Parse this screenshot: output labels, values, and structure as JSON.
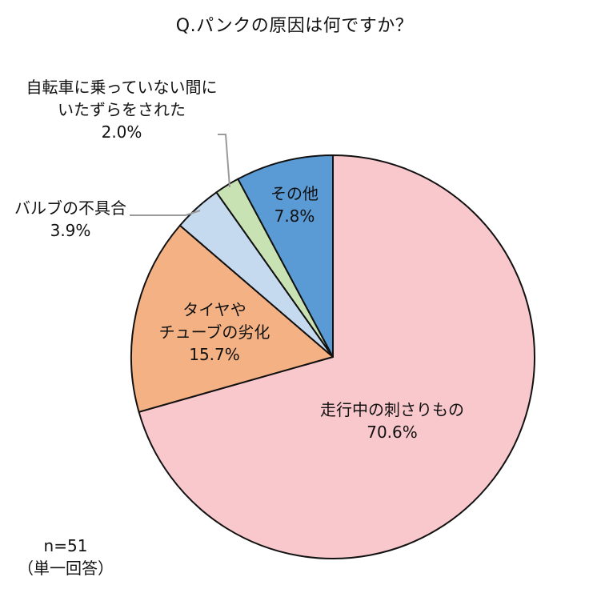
{
  "chart_data": {
    "type": "pie",
    "title": "Q.パンクの原因は何ですか？",
    "start_angle_deg": 0,
    "direction": "clockwise",
    "slices": [
      {
        "label_lines": [
          "走行中の刺さりもの"
        ],
        "value": 70.6,
        "value_label": "70.6%",
        "color": "#f9c8cc"
      },
      {
        "label_lines": [
          "タイヤや",
          "チューブの劣化"
        ],
        "value": 15.7,
        "value_label": "15.7%",
        "color": "#f4b183"
      },
      {
        "label_lines": [
          "バルブの不具合"
        ],
        "value": 3.9,
        "value_label": "3.9%",
        "color": "#c5d9ef"
      },
      {
        "label_lines": [
          "自転車に乗っていない間に",
          "いたずらをされた"
        ],
        "value": 2.0,
        "value_label": "2.0%",
        "color": "#c9e2b3"
      },
      {
        "label_lines": [
          "その他"
        ],
        "value": 7.8,
        "value_label": "7.8%",
        "color": "#5b9bd5"
      }
    ]
  },
  "footer": {
    "sample_size": "n=51",
    "answer_type": "（単一回答）"
  }
}
